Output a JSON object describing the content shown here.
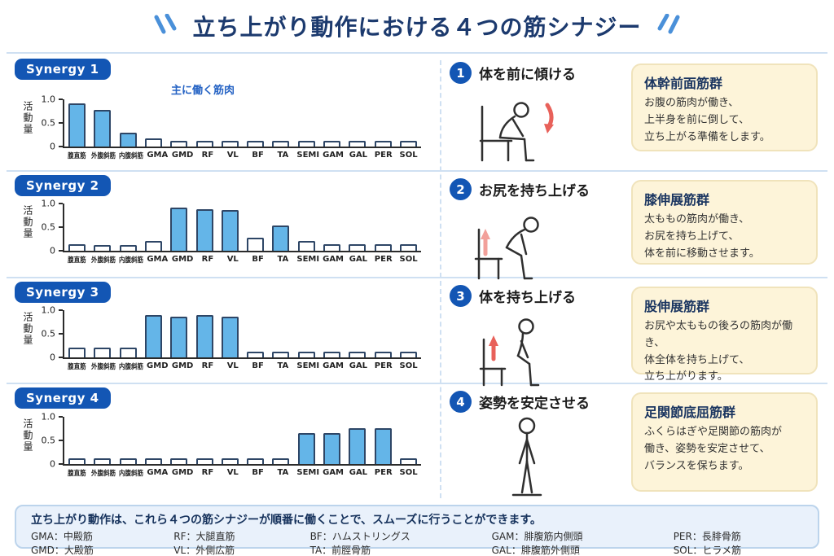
{
  "header": {
    "title": "立ち上がり動作における４つの筋シナジー"
  },
  "colors": {
    "title_navy": "#1c3a6e",
    "badge_blue": "#1356b4",
    "bar_fill_blue": "#64b5e8",
    "bar_outline": "#2e4666",
    "annotation_blue": "#2563c4",
    "info_box_bg": "#fdf4d9",
    "footer_bg": "#e9f1fb",
    "divider_blue": "#cfe0f2",
    "arrow_red": "#e8615a",
    "arrow_pink": "#f2a09a"
  },
  "chart_data": [
    {
      "type": "bar",
      "annotation": "主に働く筋肉",
      "ylabel": "活動量",
      "yticks": [
        "1.0",
        "0.5",
        "0"
      ],
      "ylim": [
        0,
        1
      ],
      "categories": [
        "腹直筋",
        "外腹斜筋",
        "内腹斜筋",
        "GMA",
        "GMD",
        "RF",
        "VL",
        "BF",
        "TA",
        "SEMI",
        "GAM",
        "GAL",
        "PER",
        "SOL"
      ],
      "values": [
        0.92,
        0.78,
        0.3,
        0.18,
        0.12,
        0.12,
        0.12,
        0.12,
        0.12,
        0.12,
        0.12,
        0.12,
        0.12,
        0.12
      ],
      "highlighted": [
        true,
        true,
        true,
        false,
        false,
        false,
        false,
        false,
        false,
        false,
        false,
        false,
        false,
        false
      ]
    },
    {
      "type": "bar",
      "ylabel": "活動量",
      "yticks": [
        "1.0",
        "0.5",
        "0"
      ],
      "ylim": [
        0,
        1
      ],
      "categories": [
        "腹直筋",
        "外腹斜筋",
        "内腹斜筋",
        "GMA",
        "GMD",
        "RF",
        "VL",
        "BF",
        "TA",
        "SEMI",
        "GAM",
        "GAL",
        "PER",
        "SOL"
      ],
      "values": [
        0.13,
        0.12,
        0.12,
        0.2,
        0.92,
        0.88,
        0.87,
        0.28,
        0.53,
        0.2,
        0.13,
        0.13,
        0.13,
        0.13
      ],
      "highlighted": [
        false,
        false,
        false,
        false,
        true,
        true,
        true,
        false,
        true,
        false,
        false,
        false,
        false,
        false
      ]
    },
    {
      "type": "bar",
      "ylabel": "活動量",
      "yticks": [
        "1.0",
        "0.5",
        "0"
      ],
      "ylim": [
        0,
        1
      ],
      "categories": [
        "腹直筋",
        "外腹斜筋",
        "内腹斜筋",
        "GMD",
        "GMD",
        "RF",
        "VL",
        "BF",
        "TA",
        "SEMI",
        "GAM",
        "GAL",
        "PER",
        "SOL"
      ],
      "values": [
        0.2,
        0.2,
        0.2,
        0.9,
        0.87,
        0.9,
        0.86,
        0.12,
        0.12,
        0.12,
        0.12,
        0.12,
        0.12,
        0.12
      ],
      "highlighted": [
        false,
        false,
        false,
        true,
        true,
        true,
        true,
        false,
        false,
        false,
        false,
        false,
        false,
        false
      ]
    },
    {
      "type": "bar",
      "ylabel": "活動量",
      "yticks": [
        "1.0",
        "0.5",
        "0"
      ],
      "ylim": [
        0,
        1
      ],
      "categories": [
        "腹直筋",
        "外腹斜筋",
        "内腹斜筋",
        "GMA",
        "GMD",
        "RF",
        "VL",
        "BF",
        "TA",
        "SEMI",
        "GAM",
        "GAL",
        "PER",
        "SOL"
      ],
      "values": [
        0.12,
        0.12,
        0.12,
        0.12,
        0.12,
        0.12,
        0.12,
        0.12,
        0.12,
        0.65,
        0.65,
        0.75,
        0.75,
        0.12
      ],
      "highlighted": [
        false,
        false,
        false,
        false,
        false,
        false,
        false,
        false,
        false,
        true,
        true,
        true,
        true,
        false
      ]
    }
  ],
  "synergies": [
    {
      "badge": "Synergy 1",
      "step_number": "1",
      "step_title": "体を前に傾ける",
      "box_title": "体幹前面筋群",
      "box_lines": [
        "お腹の筋肉が働き、",
        "上半身を前に倒して、",
        "立ち上がる準備をします。"
      ]
    },
    {
      "badge": "Synergy 2",
      "step_number": "2",
      "step_title": "お尻を持ち上げる",
      "box_title": "膝伸展筋群",
      "box_lines": [
        "太ももの筋肉が働き、",
        "お尻を持ち上げて、",
        "体を前に移動させます。"
      ]
    },
    {
      "badge": "Synergy 3",
      "step_number": "3",
      "step_title": "体を持ち上げる",
      "box_title": "股伸展筋群",
      "box_lines": [
        "お尻や太ももの後ろの筋肉が働き、",
        "体全体を持ち上げて、",
        "立ち上がります。"
      ]
    },
    {
      "badge": "Synergy 4",
      "step_number": "4",
      "step_title": "姿勢を安定させる",
      "box_title": "足関節底屈筋群",
      "box_lines": [
        "ふくらはぎや足関節の筋肉が",
        "働き、姿勢を安定させて、",
        "バランスを保ちます。"
      ]
    }
  ],
  "footer": {
    "summary": "立ち上がり動作は、これら４つの筋シナジーが順番に働くことで、スムーズに行うことができます。",
    "legend_columns": [
      [
        "GMA：中殿筋",
        "GMD：大殿筋"
      ],
      [
        "RF：大腿直筋",
        "VL：外側広筋"
      ],
      [
        "BF：ハムストリングス",
        "TA：前脛骨筋"
      ],
      [
        "GAM：腓腹筋内側頭",
        "GAL：腓腹筋外側頭"
      ],
      [
        "PER：長腓骨筋",
        "SOL：ヒラメ筋"
      ]
    ]
  }
}
